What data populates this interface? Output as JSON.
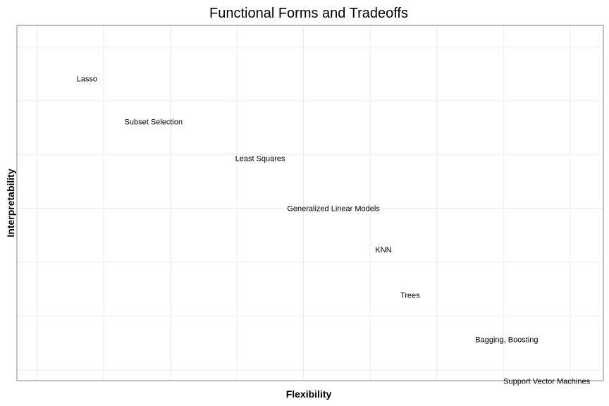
{
  "chart_data": {
    "type": "scatter",
    "title": "Functional Forms and Tradeoffs",
    "xlabel": "Flexibility",
    "ylabel": "Interpretability",
    "xlim": [
      0.2,
      9.0
    ],
    "ylim": [
      0.5,
      7.1
    ],
    "grid": true,
    "x_grid": [
      0.5,
      1.5,
      2.5,
      3.5,
      4.5,
      5.5,
      6.5,
      7.5,
      8.5
    ],
    "y_grid": [
      0.7,
      1.7,
      2.7,
      3.7,
      4.7,
      5.7,
      6.7
    ],
    "points": [
      {
        "label": "Lasso",
        "x": 1.25,
        "y": 6.1
      },
      {
        "label": "Subset Selection",
        "x": 2.25,
        "y": 5.3
      },
      {
        "label": "Least Squares",
        "x": 3.85,
        "y": 4.62
      },
      {
        "label": "Generalized Linear Models",
        "x": 4.95,
        "y": 3.69
      },
      {
        "label": "KNN",
        "x": 5.7,
        "y": 2.92
      },
      {
        "label": "Trees",
        "x": 6.1,
        "y": 2.08
      },
      {
        "label": "Bagging, Boosting",
        "x": 7.55,
        "y": 1.25
      },
      {
        "label": "Support Vector Machines",
        "x": 8.15,
        "y": 0.48
      }
    ]
  }
}
